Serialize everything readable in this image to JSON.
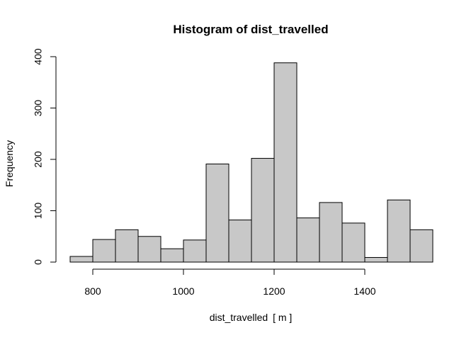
{
  "chart_data": {
    "type": "histogram",
    "title": "Histogram of dist_travelled",
    "xlabel": "dist_travelled",
    "xlabel_unit": "m",
    "ylabel": "Frequency",
    "xlim": [
      750,
      1550
    ],
    "ylim": [
      0,
      400
    ],
    "x_ticks": [
      800,
      1000,
      1200,
      1400
    ],
    "y_ticks": [
      0,
      100,
      200,
      300,
      400
    ],
    "bin_width": 50,
    "bins": [
      {
        "start": 750,
        "end": 800,
        "count": 11
      },
      {
        "start": 800,
        "end": 850,
        "count": 44
      },
      {
        "start": 850,
        "end": 900,
        "count": 63
      },
      {
        "start": 900,
        "end": 950,
        "count": 50
      },
      {
        "start": 950,
        "end": 1000,
        "count": 26
      },
      {
        "start": 1000,
        "end": 1050,
        "count": 43
      },
      {
        "start": 1050,
        "end": 1100,
        "count": 191
      },
      {
        "start": 1100,
        "end": 1150,
        "count": 82
      },
      {
        "start": 1150,
        "end": 1200,
        "count": 202
      },
      {
        "start": 1200,
        "end": 1250,
        "count": 388
      },
      {
        "start": 1250,
        "end": 1300,
        "count": 86
      },
      {
        "start": 1300,
        "end": 1350,
        "count": 116
      },
      {
        "start": 1350,
        "end": 1400,
        "count": 76
      },
      {
        "start": 1400,
        "end": 1450,
        "count": 9
      },
      {
        "start": 1450,
        "end": 1500,
        "count": 121
      },
      {
        "start": 1500,
        "end": 1550,
        "count": 63
      }
    ],
    "grid": false,
    "bar_fill": "#c8c8c8",
    "bar_stroke": "#000000",
    "axis_color": "#000000"
  }
}
